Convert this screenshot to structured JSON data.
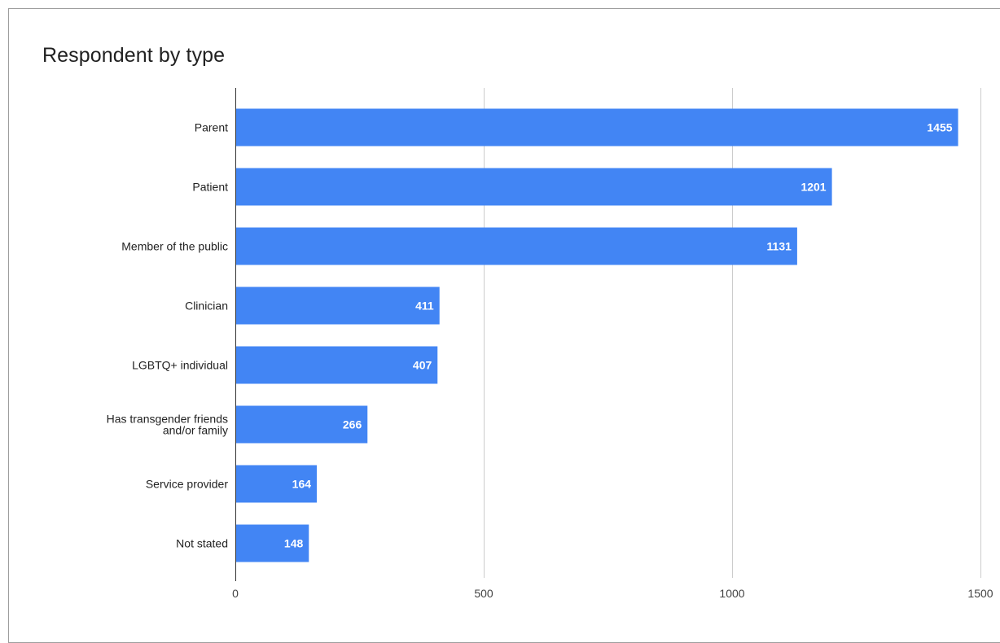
{
  "chart_data": {
    "type": "bar",
    "orientation": "horizontal",
    "title": "Respondent by type",
    "xlabel": "",
    "ylabel": "",
    "categories": [
      "Parent",
      "Patient",
      "Member of the public",
      "Clinician",
      "LGBTQ+ individual",
      "Has transgender friends and/or family",
      "Service provider",
      "Not stated"
    ],
    "category_lines": [
      [
        "Parent"
      ],
      [
        "Patient"
      ],
      [
        "Member of the public"
      ],
      [
        "Clinician"
      ],
      [
        "LGBTQ+ individual"
      ],
      [
        "Has transgender friends",
        "and/or family"
      ],
      [
        "Service provider"
      ],
      [
        "Not stated"
      ]
    ],
    "values": [
      1455,
      1201,
      1131,
      411,
      407,
      266,
      164,
      148
    ],
    "xlim": [
      0,
      1500
    ],
    "ticks": [
      0,
      500,
      1000,
      1500
    ],
    "tick_labels": [
      "0",
      "500",
      "1000",
      "1500"
    ],
    "grid": true,
    "legend": "none",
    "bar_color": "#4285f4",
    "grid_color": "#cccccc",
    "axis_color": "#333333"
  }
}
